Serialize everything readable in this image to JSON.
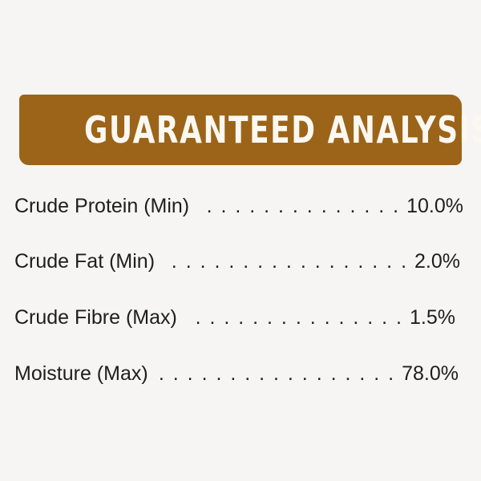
{
  "title": "GUARANTEED ANALYSIS",
  "colors": {
    "banner": "#9c6418",
    "background": "#f6f5f3",
    "text": "#1e1e1e"
  },
  "rows": [
    {
      "label": "Crude Protein (Min)",
      "value": "10.0%"
    },
    {
      "label": "Crude Fat (Min)",
      "value": "2.0%"
    },
    {
      "label": "Crude Fibre (Max)",
      "value": "1.5%"
    },
    {
      "label": "Moisture (Max)",
      "value": "78.0%"
    }
  ]
}
